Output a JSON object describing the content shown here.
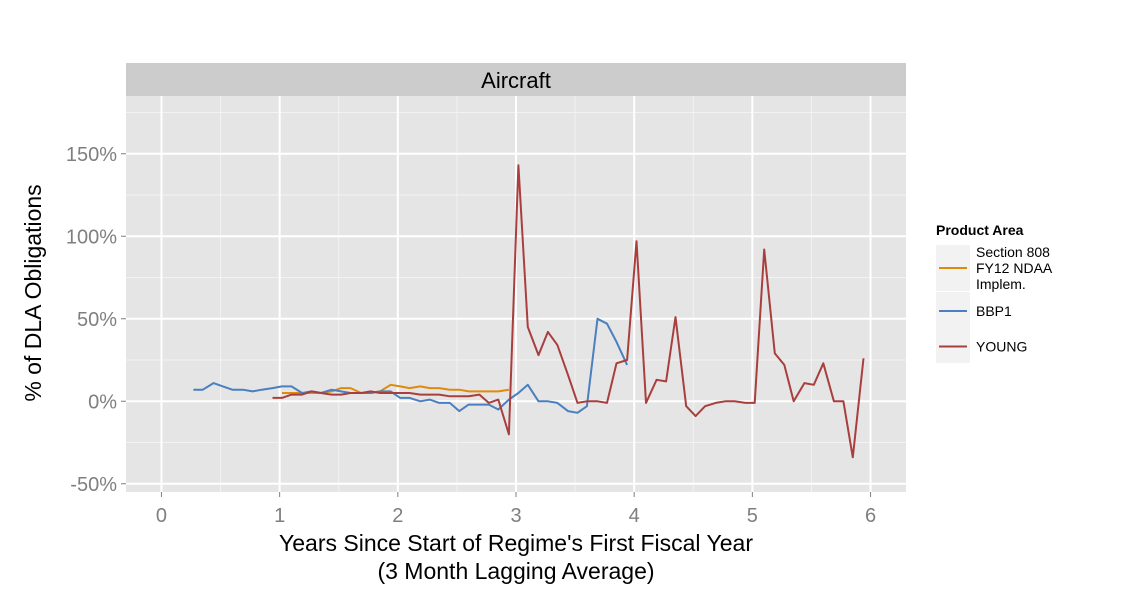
{
  "chart_data": {
    "type": "line",
    "title": "Aircraft",
    "xlabel": [
      "Years Since Start of Regime's First Fiscal Year",
      "(3 Month Lagging Average)"
    ],
    "ylabel": "% of DLA Obligations",
    "xlim": [
      -0.3,
      6.3
    ],
    "ylim": [
      -55,
      185
    ],
    "x_ticks": [
      0,
      1,
      2,
      3,
      4,
      5,
      6
    ],
    "x_tick_labels": [
      "0",
      "1",
      "2",
      "3",
      "4",
      "5",
      "6"
    ],
    "y_ticks": [
      -50,
      0,
      50,
      100,
      150
    ],
    "y_tick_labels": [
      "-50%",
      "0%",
      "50%",
      "100%",
      "150%"
    ],
    "grid": true,
    "legend": {
      "title": "Product Area",
      "position": "right"
    },
    "series": [
      {
        "name": [
          "Section 808",
          "FY12 NDAA",
          "Implem."
        ],
        "color": "#E08A0B",
        "x": [
          1.02,
          1.1,
          1.19,
          1.27,
          1.35,
          1.44,
          1.52,
          1.6,
          1.69,
          1.77,
          1.85,
          1.94,
          2.02,
          2.1,
          2.19,
          2.27,
          2.35,
          2.44,
          2.52,
          2.6,
          2.69,
          2.77,
          2.85,
          2.94
        ],
        "y": [
          5,
          5,
          5,
          5,
          5,
          6,
          8,
          8,
          5,
          5,
          6,
          10,
          9,
          8,
          9,
          8,
          8,
          7,
          7,
          6,
          6,
          6,
          6,
          7
        ]
      },
      {
        "name": "BBP1",
        "color": "#4A7FC0",
        "x": [
          0.27,
          0.35,
          0.44,
          0.52,
          0.6,
          0.69,
          0.77,
          0.85,
          0.94,
          1.02,
          1.1,
          1.19,
          1.27,
          1.35,
          1.44,
          1.52,
          1.6,
          1.69,
          1.77,
          1.85,
          1.94,
          2.02,
          2.1,
          2.19,
          2.27,
          2.35,
          2.44,
          2.52,
          2.6,
          2.69,
          2.77,
          2.85,
          2.94,
          3.02,
          3.1,
          3.19,
          3.27,
          3.35,
          3.44,
          3.52,
          3.6,
          3.69,
          3.77,
          3.85,
          3.94
        ],
        "y": [
          7,
          7,
          11,
          9,
          7,
          7,
          6,
          7,
          8,
          9,
          9,
          5,
          6,
          5,
          7,
          6,
          5,
          5,
          5,
          6,
          6,
          2,
          2,
          0,
          1,
          -1,
          -1,
          -6,
          -2,
          -2,
          -2,
          -5,
          1,
          5,
          10,
          0,
          0,
          -1,
          -6,
          -7,
          -3,
          50,
          47,
          36,
          22
        ]
      },
      {
        "name": "YOUNG",
        "color": "#A93F3D",
        "x": [
          0.94,
          1.02,
          1.1,
          1.19,
          1.27,
          1.35,
          1.44,
          1.52,
          1.6,
          1.69,
          1.77,
          1.85,
          1.94,
          2.02,
          2.1,
          2.19,
          2.27,
          2.35,
          2.44,
          2.52,
          2.6,
          2.69,
          2.77,
          2.85,
          2.94,
          3.02,
          3.1,
          3.19,
          3.27,
          3.35,
          3.44,
          3.52,
          3.6,
          3.69,
          3.77,
          3.85,
          3.94,
          4.02,
          4.1,
          4.19,
          4.27,
          4.35,
          4.44,
          4.52,
          4.6,
          4.69,
          4.77,
          4.85,
          4.94,
          5.02,
          5.1,
          5.19,
          5.27,
          5.35,
          5.44,
          5.52,
          5.6,
          5.69,
          5.77,
          5.85,
          5.94
        ],
        "y": [
          2,
          2,
          4,
          4,
          6,
          5,
          4,
          4,
          5,
          5,
          6,
          5,
          5,
          5,
          5,
          4,
          4,
          4,
          3,
          3,
          3,
          4,
          -1,
          1,
          -20,
          143,
          45,
          28,
          42,
          34,
          16,
          -1,
          0,
          0,
          -1,
          23,
          25,
          97,
          -1,
          13,
          12,
          51,
          -3,
          -9,
          -3,
          -1,
          0,
          0,
          -1,
          -1,
          92,
          29,
          22,
          0,
          11,
          10,
          23,
          0,
          0,
          -34,
          26
        ]
      }
    ]
  }
}
